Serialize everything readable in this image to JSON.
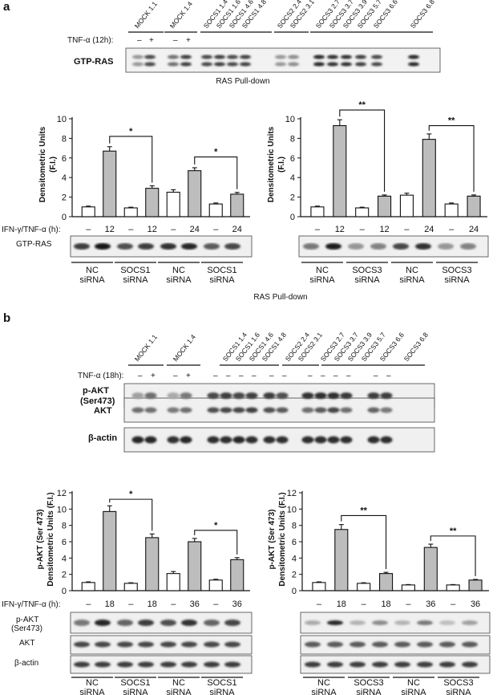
{
  "panel_a": {
    "label": "a",
    "top_blot": {
      "lanes": [
        "MOCK 1.1",
        "MOCK 1.4",
        "SOCS1 1.4",
        "SOCS1 1.6",
        "SOCS1 4.6",
        "SOCS1 4.8",
        "SOCS2 2.4",
        "SOCS2 3.1",
        "SOCS3 2.7",
        "SOCS3 3.7",
        "SOCS3 3.9",
        "SOCS3 5.7",
        "SOCS3 6.6",
        "SOCS3 6.8"
      ],
      "treatment_label": "TNF-α (12h):",
      "treatment_signs": [
        "–",
        "+",
        "–",
        "+"
      ],
      "row_label": "GTP-RAS",
      "caption": "RAS Pull-down"
    },
    "x_treatment_label": "IFN-γ/TNF-α (h):",
    "bottom_caption": "RAS Pull-down",
    "blot_row_label": "GTP-RAS"
  },
  "panel_b": {
    "label": "b",
    "top_blot": {
      "lanes": [
        "MOCK 1.1",
        "MOCK 1.4",
        "SOCS1 1.4",
        "SOCS1 1.6",
        "SOCS1 4.6",
        "SOCS1 4.8",
        "SOCS2 2.4",
        "SOCS2 3.1",
        "SOCS3 2.7",
        "SOCS3 3.7",
        "SOCS3 3.9",
        "SOCS3 5.7",
        "SOCS3 6.6",
        "SOCS3 6.8"
      ],
      "treatment_label": "TNF-α (18h):",
      "treatment_signs": [
        "–",
        "+",
        "–",
        "+",
        "–",
        "–",
        "–",
        "–",
        "–",
        "–",
        "–",
        "–",
        "–",
        "–",
        "–",
        "–"
      ],
      "rows": [
        "p-AKT",
        "(Ser473)",
        "AKT",
        "β-actin"
      ]
    },
    "x_treatment_label": "IFN-γ/TNF-α (h):",
    "blot_rows": [
      "p-AKT",
      "(Ser473)",
      "AKT",
      "β-actin"
    ]
  },
  "chart_data": [
    {
      "type": "bar",
      "panel": "a-left",
      "ylabel": "Densitometric Units (F.I.)",
      "ylim": [
        0,
        10
      ],
      "yticks": [
        "0",
        "2",
        "4",
        "6",
        "8",
        "10"
      ],
      "categories": [
        "–",
        "12",
        "–",
        "12",
        "–",
        "24",
        "–",
        "24"
      ],
      "values": [
        1.0,
        6.7,
        0.9,
        2.9,
        2.5,
        4.7,
        1.3,
        2.3
      ],
      "errors": [
        0.08,
        0.45,
        0.07,
        0.25,
        0.25,
        0.3,
        0.1,
        0.18
      ],
      "fills": [
        "#ffffff",
        "#bdbdbd",
        "#ffffff",
        "#bdbdbd",
        "#ffffff",
        "#bdbdbd",
        "#ffffff",
        "#bdbdbd"
      ],
      "groups": [
        [
          "NC",
          "siRNA"
        ],
        [
          "SOCS1",
          "siRNA"
        ],
        [
          "NC",
          "siRNA"
        ],
        [
          "SOCS1",
          "siRNA"
        ]
      ],
      "significance": [
        {
          "from": 1,
          "to": 3,
          "label": "*",
          "y": 8.2
        },
        {
          "from": 5,
          "to": 7,
          "label": "*",
          "y": 6.1
        }
      ]
    },
    {
      "type": "bar",
      "panel": "a-right",
      "ylabel": "Densitometric Units (F.I.)",
      "ylim": [
        0,
        10
      ],
      "yticks": [
        "0",
        "2",
        "4",
        "6",
        "8",
        "10"
      ],
      "categories": [
        "–",
        "12",
        "–",
        "12",
        "–",
        "24",
        "–",
        "24"
      ],
      "values": [
        1.0,
        9.3,
        0.9,
        2.1,
        2.2,
        7.9,
        1.3,
        2.1
      ],
      "errors": [
        0.08,
        0.6,
        0.07,
        0.12,
        0.2,
        0.55,
        0.1,
        0.12
      ],
      "fills": [
        "#ffffff",
        "#bdbdbd",
        "#ffffff",
        "#bdbdbd",
        "#ffffff",
        "#bdbdbd",
        "#ffffff",
        "#bdbdbd"
      ],
      "groups": [
        [
          "NC",
          "siRNA"
        ],
        [
          "SOCS3",
          "siRNA"
        ],
        [
          "NC",
          "siRNA"
        ],
        [
          "SOCS3",
          "siRNA"
        ]
      ],
      "significance": [
        {
          "from": 1,
          "to": 3,
          "label": "**",
          "y": 10.9
        },
        {
          "from": 5,
          "to": 7,
          "label": "**",
          "y": 9.3
        }
      ]
    },
    {
      "type": "bar",
      "panel": "b-left",
      "ylabel": "p-AKT (Ser 473) Densitometric Units (F.I.)",
      "ylim": [
        0,
        12
      ],
      "yticks": [
        "0",
        "2",
        "4",
        "6",
        "8",
        "10",
        "12"
      ],
      "categories": [
        "–",
        "18",
        "–",
        "18",
        "–",
        "36",
        "–",
        "36"
      ],
      "values": [
        1.0,
        9.7,
        0.9,
        6.5,
        2.1,
        6.0,
        1.3,
        3.8
      ],
      "errors": [
        0.08,
        0.7,
        0.07,
        0.45,
        0.25,
        0.4,
        0.1,
        0.25
      ],
      "fills": [
        "#ffffff",
        "#bdbdbd",
        "#ffffff",
        "#bdbdbd",
        "#ffffff",
        "#bdbdbd",
        "#ffffff",
        "#bdbdbd"
      ],
      "groups": [
        [
          "NC",
          "siRNA"
        ],
        [
          "SOCS1",
          "siRNA"
        ],
        [
          "NC",
          "siRNA"
        ],
        [
          "SOCS1",
          "siRNA"
        ]
      ],
      "significance": [
        {
          "from": 1,
          "to": 3,
          "label": "*",
          "y": 11.2
        },
        {
          "from": 5,
          "to": 7,
          "label": "*",
          "y": 7.4
        }
      ]
    },
    {
      "type": "bar",
      "panel": "b-right",
      "ylabel": "p-AKT (Ser 473) Densitometric Units (F.I.)",
      "ylim": [
        0,
        12
      ],
      "yticks": [
        "0",
        "2",
        "4",
        "6",
        "8",
        "10",
        "12"
      ],
      "categories": [
        "–",
        "18",
        "–",
        "18",
        "–",
        "36",
        "–",
        "36"
      ],
      "values": [
        1.0,
        7.5,
        0.9,
        2.1,
        0.7,
        5.3,
        0.7,
        1.3
      ],
      "errors": [
        0.08,
        0.6,
        0.07,
        0.15,
        0.05,
        0.4,
        0.05,
        0.08
      ],
      "fills": [
        "#ffffff",
        "#bdbdbd",
        "#ffffff",
        "#bdbdbd",
        "#ffffff",
        "#bdbdbd",
        "#ffffff",
        "#bdbdbd"
      ],
      "groups": [
        [
          "NC",
          "siRNA"
        ],
        [
          "SOCS3",
          "siRNA"
        ],
        [
          "NC",
          "siRNA"
        ],
        [
          "SOCS3",
          "siRNA"
        ]
      ],
      "significance": [
        {
          "from": 1,
          "to": 3,
          "label": "**",
          "y": 9.2
        },
        {
          "from": 5,
          "to": 7,
          "label": "**",
          "y": 6.7
        }
      ]
    }
  ]
}
